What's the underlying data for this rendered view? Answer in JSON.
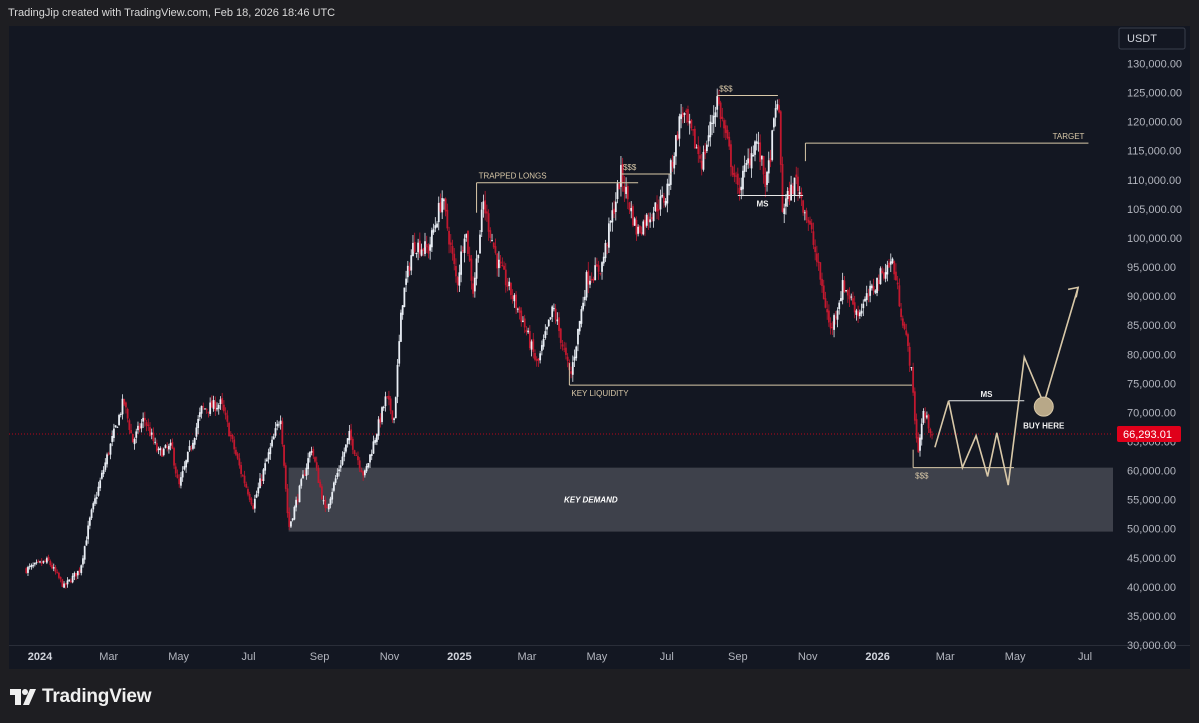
{
  "header": {
    "attribution": "TradingJip created with TradingView.com, Feb 18, 2026 18:46 UTC"
  },
  "footer": {
    "brand": "TradingView"
  },
  "chart_data": {
    "type": "candlestick",
    "currency": "USDT",
    "last_price": "66,293.01",
    "y_ticks": [
      "130,000.00",
      "125,000.00",
      "120,000.00",
      "115,000.00",
      "110,000.00",
      "105,000.00",
      "100,000.00",
      "95,000.00",
      "90,000.00",
      "85,000.00",
      "80,000.00",
      "75,000.00",
      "70,000.00",
      "65,000.00",
      "60,000.00",
      "55,000.00",
      "50,000.00",
      "45,000.00",
      "40,000.00",
      "35,000.00",
      "30,000.00"
    ],
    "y_range": [
      30000,
      130000
    ],
    "x_ticks": [
      {
        "label": "2024",
        "date": "2024-01-01",
        "bold": true
      },
      {
        "label": "Mar",
        "date": "2024-03-01"
      },
      {
        "label": "May",
        "date": "2024-05-01"
      },
      {
        "label": "Jul",
        "date": "2024-07-01"
      },
      {
        "label": "Sep",
        "date": "2024-09-01"
      },
      {
        "label": "Nov",
        "date": "2024-11-01"
      },
      {
        "label": "2025",
        "date": "2025-01-01",
        "bold": true
      },
      {
        "label": "Mar",
        "date": "2025-03-01"
      },
      {
        "label": "May",
        "date": "2025-05-01"
      },
      {
        "label": "Jul",
        "date": "2025-07-01"
      },
      {
        "label": "Sep",
        "date": "2025-09-01"
      },
      {
        "label": "Nov",
        "date": "2025-11-01"
      },
      {
        "label": "2026",
        "date": "2026-01-01",
        "bold": true
      },
      {
        "label": "Mar",
        "date": "2026-03-01"
      },
      {
        "label": "May",
        "date": "2026-05-01"
      },
      {
        "label": "Jul",
        "date": "2026-07-01"
      }
    ],
    "price_path": [
      [
        "2023-12-20",
        43000
      ],
      [
        "2024-01-08",
        44500
      ],
      [
        "2024-01-22",
        40000
      ],
      [
        "2024-02-05",
        43000
      ],
      [
        "2024-02-14",
        52000
      ],
      [
        "2024-02-28",
        62000
      ],
      [
        "2024-03-14",
        72000
      ],
      [
        "2024-03-22",
        65000
      ],
      [
        "2024-04-01",
        69000
      ],
      [
        "2024-04-13",
        63000
      ],
      [
        "2024-04-25",
        64000
      ],
      [
        "2024-05-01",
        57000
      ],
      [
        "2024-05-21",
        70500
      ],
      [
        "2024-06-07",
        71500
      ],
      [
        "2024-06-24",
        60000
      ],
      [
        "2024-07-05",
        54000
      ],
      [
        "2024-07-29",
        69500
      ],
      [
        "2024-08-05",
        50000
      ],
      [
        "2024-08-25",
        64000
      ],
      [
        "2024-09-06",
        53000
      ],
      [
        "2024-09-27",
        66000
      ],
      [
        "2024-10-10",
        59000
      ],
      [
        "2024-10-29",
        72500
      ],
      [
        "2024-11-05",
        69000
      ],
      [
        "2024-11-12",
        89000
      ],
      [
        "2024-11-22",
        99000
      ],
      [
        "2024-12-05",
        98000
      ],
      [
        "2024-12-17",
        107000
      ],
      [
        "2024-12-30",
        92000
      ],
      [
        "2025-01-06",
        102000
      ],
      [
        "2025-01-13",
        91000
      ],
      [
        "2025-01-22",
        106000
      ],
      [
        "2025-02-03",
        96000
      ],
      [
        "2025-02-25",
        86000
      ],
      [
        "2025-03-10",
        78000
      ],
      [
        "2025-03-24",
        88000
      ],
      [
        "2025-04-08",
        76000
      ],
      [
        "2025-04-22",
        93000
      ],
      [
        "2025-05-05",
        95000
      ],
      [
        "2025-05-22",
        111000
      ],
      [
        "2025-06-05",
        101000
      ],
      [
        "2025-06-20",
        105000
      ],
      [
        "2025-06-30",
        107000
      ],
      [
        "2025-07-14",
        122000
      ],
      [
        "2025-08-01",
        113000
      ],
      [
        "2025-08-14",
        124000
      ],
      [
        "2025-09-01",
        108000
      ],
      [
        "2025-09-17",
        117000
      ],
      [
        "2025-09-26",
        109000
      ],
      [
        "2025-10-06",
        125000
      ],
      [
        "2025-10-10",
        105000
      ],
      [
        "2025-10-22",
        110000
      ],
      [
        "2025-11-04",
        101000
      ],
      [
        "2025-11-21",
        84000
      ],
      [
        "2025-12-02",
        92000
      ],
      [
        "2025-12-15",
        87000
      ],
      [
        "2026-01-05",
        94000
      ],
      [
        "2026-01-14",
        96000
      ],
      [
        "2026-01-30",
        78000
      ],
      [
        "2026-02-05",
        63000
      ],
      [
        "2026-02-10",
        70000
      ],
      [
        "2026-02-18",
        66293
      ]
    ],
    "projection_path": [
      [
        "2026-02-20",
        64000
      ],
      [
        "2026-03-04",
        72000
      ],
      [
        "2026-03-16",
        60500
      ],
      [
        "2026-03-28",
        66000
      ],
      [
        "2026-04-07",
        59000
      ],
      [
        "2026-04-15",
        66500
      ],
      [
        "2026-04-25",
        57500
      ],
      [
        "2026-05-09",
        79500
      ],
      [
        "2026-05-26",
        71500
      ],
      [
        "2026-06-25",
        91500
      ]
    ],
    "demand_zone": {
      "label": "KEY DEMAND",
      "from": "2024-08-05",
      "to": "2026-07-31",
      "low": 49500,
      "high": 60500
    },
    "annotations": [
      {
        "type": "level",
        "label": "TRAPPED LONGS",
        "from": "2025-01-16",
        "to": "2025-06-06",
        "price": 109500,
        "label_pos": "above-start"
      },
      {
        "type": "level",
        "label": "$$$",
        "from": "2025-05-22",
        "to": "2025-07-05",
        "price": 111000,
        "label_pos": "above-start"
      },
      {
        "type": "level",
        "label": "$$$",
        "from": "2025-08-14",
        "to": "2025-10-06",
        "price": 124500,
        "label_pos": "above-start"
      },
      {
        "type": "level",
        "label": "MS",
        "from": "2025-09-01",
        "to": "2025-10-28",
        "price": 107300,
        "label_pos": "below-mid"
      },
      {
        "type": "level",
        "label": "TARGET",
        "from": "2025-10-30",
        "to": "2026-07-04",
        "price": 116300,
        "label_pos": "above-end"
      },
      {
        "type": "level",
        "label": "KEY LIQUIDITY",
        "from": "2025-04-07",
        "to": "2026-01-31",
        "price": 74700,
        "label_pos": "below-start"
      },
      {
        "type": "level",
        "label": "$$$",
        "from": "2026-02-01",
        "to": "2026-04-30",
        "price": 60500,
        "label_pos": "below-start"
      },
      {
        "type": "level",
        "label": "MS",
        "from": "2026-03-04",
        "to": "2026-05-09",
        "price": 72000,
        "label_pos": "above-mid"
      },
      {
        "type": "marker",
        "label": "BUY HERE",
        "date": "2026-05-26",
        "price": 71500
      }
    ],
    "colors": {
      "up": "#e9eef5",
      "down": "#c2182f",
      "line": "#d8c8a8",
      "zone": "#444650",
      "price_tag": "#e0001a"
    }
  }
}
